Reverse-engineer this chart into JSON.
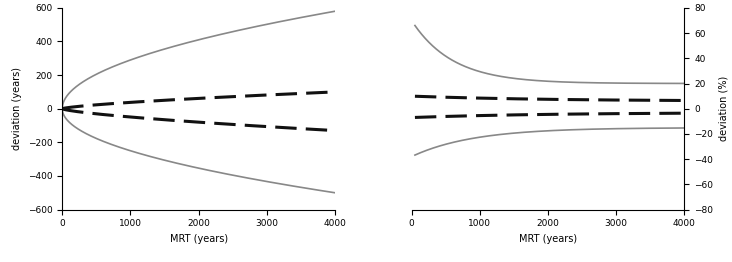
{
  "x_max": 4000,
  "x_min": 0,
  "left_ylim": [
    -600,
    600
  ],
  "right_ylim": [
    -80,
    80
  ],
  "left_ylabel": "deviation (years)",
  "right_ylabel": "deviation (%)",
  "xlabel": "MRT (years)",
  "left_yticks": [
    -600,
    -400,
    -200,
    0,
    200,
    400,
    600
  ],
  "right_yticks": [
    -80,
    -60,
    -40,
    -20,
    0,
    20,
    40,
    60,
    80
  ],
  "x_ticks": [
    0,
    1000,
    2000,
    3000,
    4000
  ],
  "solid_color": "#888888",
  "dashed_color": "#111111",
  "solid_lw": 1.2,
  "dashed_lw": 2.2
}
